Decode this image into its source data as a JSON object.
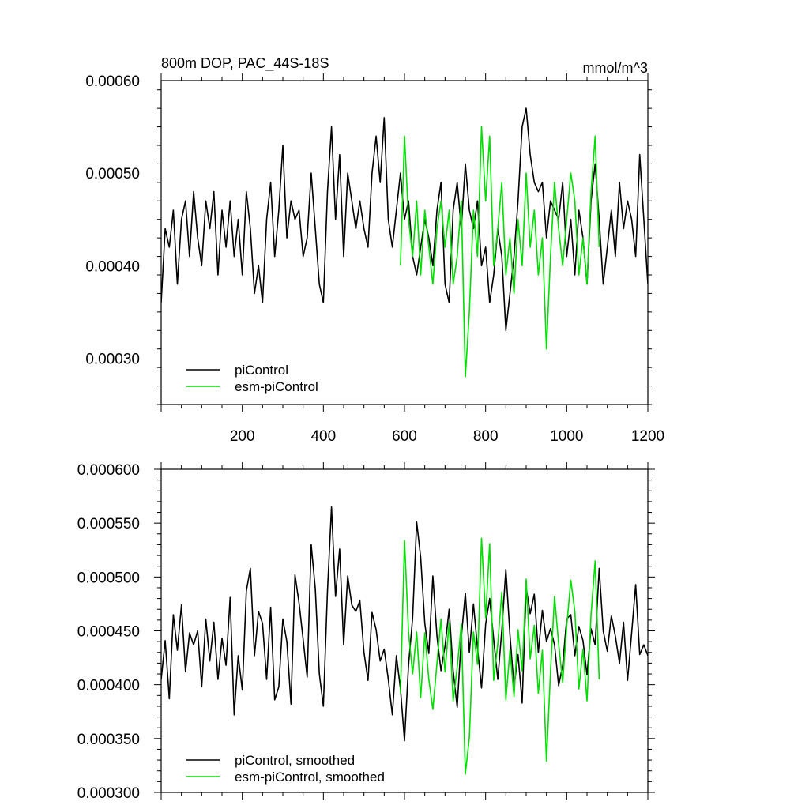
{
  "chart_data": [
    {
      "type": "line",
      "title": "800m DOP, PAC_44S-18S",
      "units": "mmol/m^3",
      "xlim": [
        0,
        1200
      ],
      "ylim": [
        0.00025,
        0.0006
      ],
      "xticks": [
        200,
        400,
        600,
        800,
        1000,
        1200
      ],
      "xtick_labels": [
        "200",
        "400",
        "600",
        "800",
        "1000",
        "1200"
      ],
      "yticks": [
        0.0003,
        0.0004,
        0.0005,
        0.0006
      ],
      "ytick_labels": [
        "0.00030",
        "0.00040",
        "0.00050",
        "0.00060"
      ],
      "legend_position": "bottom-left",
      "series": [
        {
          "name": "piControl",
          "color": "#000000",
          "x": [
            0,
            10,
            20,
            30,
            40,
            50,
            60,
            70,
            80,
            90,
            100,
            110,
            120,
            130,
            140,
            150,
            160,
            170,
            180,
            190,
            200,
            210,
            220,
            230,
            240,
            250,
            260,
            270,
            280,
            290,
            300,
            310,
            320,
            330,
            340,
            350,
            360,
            370,
            380,
            390,
            400,
            410,
            420,
            430,
            440,
            450,
            460,
            470,
            480,
            490,
            500,
            510,
            520,
            530,
            540,
            550,
            560,
            570,
            580,
            590,
            600,
            610,
            620,
            630,
            640,
            650,
            660,
            670,
            680,
            690,
            700,
            710,
            720,
            730,
            740,
            750,
            760,
            770,
            780,
            790,
            800,
            810,
            820,
            830,
            840,
            850,
            860,
            870,
            880,
            890,
            900,
            910,
            920,
            930,
            940,
            950,
            960,
            970,
            980,
            990,
            1000,
            1010,
            1020,
            1030,
            1040,
            1050,
            1060,
            1070,
            1080,
            1090,
            1100,
            1110,
            1120,
            1130,
            1140,
            1150,
            1160,
            1170,
            1180,
            1190,
            1200
          ],
          "values": [
            0.00036,
            0.00044,
            0.00042,
            0.00046,
            0.00038,
            0.00045,
            0.00047,
            0.00041,
            0.00048,
            0.00043,
            0.0004,
            0.00047,
            0.00044,
            0.00048,
            0.00039,
            0.00046,
            0.00042,
            0.00047,
            0.00041,
            0.00045,
            0.00039,
            0.00048,
            0.00044,
            0.00037,
            0.0004,
            0.00036,
            0.00045,
            0.00049,
            0.00041,
            0.00046,
            0.00053,
            0.00043,
            0.00047,
            0.00045,
            0.00046,
            0.00041,
            0.00043,
            0.0005,
            0.00044,
            0.00038,
            0.00036,
            0.00048,
            0.00055,
            0.00045,
            0.00052,
            0.00041,
            0.0005,
            0.00047,
            0.00044,
            0.00047,
            0.00044,
            0.00042,
            0.0005,
            0.00054,
            0.00049,
            0.00056,
            0.00045,
            0.00042,
            0.00046,
            0.0005,
            0.00045,
            0.00047,
            0.00041,
            0.00039,
            0.00042,
            0.00045,
            0.00043,
            0.0004,
            0.00046,
            0.00049,
            0.00038,
            0.00036,
            0.00046,
            0.00049,
            0.00044,
            0.00051,
            0.00046,
            0.00044,
            0.00047,
            0.0004,
            0.00042,
            0.00036,
            0.00039,
            0.00044,
            0.00041,
            0.00033,
            0.00037,
            0.00041,
            0.00047,
            0.00055,
            0.00057,
            0.00052,
            0.00049,
            0.00048,
            0.00049,
            0.00043,
            0.00047,
            0.00046,
            0.00045,
            0.00049,
            0.00041,
            0.00045,
            0.00039,
            0.00046,
            0.00043,
            0.00038,
            0.00047,
            0.00051,
            0.00045,
            0.00038,
            0.00042,
            0.00046,
            0.00041,
            0.00049,
            0.00044,
            0.00047,
            0.00045,
            0.00041,
            0.00052,
            0.00045,
            0.00038
          ]
        },
        {
          "name": "esm-piControl",
          "color": "#00dd00",
          "x": [
            590,
            600,
            610,
            620,
            630,
            640,
            650,
            660,
            670,
            680,
            690,
            700,
            710,
            720,
            730,
            740,
            750,
            760,
            770,
            780,
            790,
            800,
            810,
            820,
            830,
            840,
            850,
            860,
            870,
            880,
            890,
            900,
            910,
            920,
            930,
            940,
            950,
            960,
            970,
            980,
            990,
            1000,
            1010,
            1020,
            1030,
            1040,
            1050,
            1060,
            1070,
            1080
          ],
          "values": [
            0.0004,
            0.00054,
            0.00045,
            0.00041,
            0.00047,
            0.00039,
            0.00046,
            0.00042,
            0.00038,
            0.00044,
            0.00047,
            0.00042,
            0.00046,
            0.00038,
            0.00041,
            0.00047,
            0.00028,
            0.00035,
            0.00046,
            0.00041,
            0.00055,
            0.00047,
            0.00054,
            0.0004,
            0.00044,
            0.00049,
            0.00039,
            0.00043,
            0.00037,
            0.00045,
            0.0004,
            0.0005,
            0.00042,
            0.00046,
            0.00039,
            0.00043,
            0.00031,
            0.00041,
            0.00049,
            0.00044,
            0.0004,
            0.00045,
            0.0005,
            0.00047,
            0.00039,
            0.00043,
            0.00038,
            0.00048,
            0.00054,
            0.00042
          ]
        }
      ]
    },
    {
      "type": "line",
      "title": "",
      "xlim": [
        0,
        1200
      ],
      "ylim": [
        0.0003,
        0.0006
      ],
      "yticks": [
        0.0003,
        0.00035,
        0.0004,
        0.00045,
        0.0005,
        0.00055,
        0.0006
      ],
      "ytick_labels": [
        "0.000300",
        "0.000350",
        "0.000400",
        "0.000450",
        "0.000500",
        "0.000550",
        "0.000600"
      ],
      "legend_position": "bottom-left",
      "series": [
        {
          "name": "piControl, smoothed",
          "color": "#000000",
          "x": [
            0,
            10,
            20,
            30,
            40,
            50,
            60,
            70,
            80,
            90,
            100,
            110,
            120,
            130,
            140,
            150,
            160,
            170,
            180,
            190,
            200,
            210,
            220,
            230,
            240,
            250,
            260,
            270,
            280,
            290,
            300,
            310,
            320,
            330,
            340,
            350,
            360,
            370,
            380,
            390,
            400,
            410,
            420,
            430,
            440,
            450,
            460,
            470,
            480,
            490,
            500,
            510,
            520,
            530,
            540,
            550,
            560,
            570,
            580,
            590,
            600,
            610,
            620,
            630,
            640,
            650,
            660,
            670,
            680,
            690,
            700,
            710,
            720,
            730,
            740,
            750,
            760,
            770,
            780,
            790,
            800,
            810,
            820,
            830,
            840,
            850,
            860,
            870,
            880,
            890,
            900,
            910,
            920,
            930,
            940,
            950,
            960,
            970,
            980,
            990,
            1000,
            1010,
            1020,
            1030,
            1040,
            1050,
            1060,
            1070,
            1080,
            1090,
            1100,
            1110,
            1120,
            1130,
            1140,
            1150,
            1160,
            1170,
            1180,
            1190,
            1200
          ],
          "values": [
            0.000405,
            0.000441,
            0.000387,
            0.000465,
            0.000432,
            0.000474,
            0.000412,
            0.000448,
            0.000437,
            0.00045,
            0.000398,
            0.000461,
            0.000422,
            0.000458,
            0.000405,
            0.000443,
            0.000418,
            0.000481,
            0.000372,
            0.000427,
            0.000395,
            0.000487,
            0.000508,
            0.000427,
            0.000468,
            0.000457,
            0.000405,
            0.000472,
            0.000386,
            0.000398,
            0.000461,
            0.00044,
            0.000382,
            0.000502,
            0.000476,
            0.000442,
            0.000407,
            0.00053,
            0.000489,
            0.00041,
            0.00038,
            0.000487,
            0.000565,
            0.000482,
            0.000526,
            0.000437,
            0.000501,
            0.000474,
            0.000468,
            0.000478,
            0.00043,
            0.000404,
            0.000467,
            0.000451,
            0.000422,
            0.000433,
            0.000405,
            0.000372,
            0.000427,
            0.000396,
            0.000348,
            0.000418,
            0.000462,
            0.000551,
            0.000518,
            0.000457,
            0.000429,
            0.000501,
            0.000445,
            0.000413,
            0.000436,
            0.00047,
            0.000413,
            0.000379,
            0.000444,
            0.000485,
            0.00043,
            0.000475,
            0.000434,
            0.000397,
            0.000456,
            0.00048,
            0.000442,
            0.000405,
            0.000451,
            0.000507,
            0.000446,
            0.000398,
            0.000428,
            0.000383,
            0.00049,
            0.000466,
            0.000484,
            0.00043,
            0.000469,
            0.00044,
            0.000452,
            0.000437,
            0.000399,
            0.000418,
            0.000461,
            0.000465,
            0.000427,
            0.000454,
            0.000441,
            0.000409,
            0.000452,
            0.000437,
            0.000508,
            0.00045,
            0.000431,
            0.000464,
            0.000445,
            0.00042,
            0.000458,
            0.000404,
            0.000448,
            0.000493,
            0.000428,
            0.000437,
            0.000427
          ]
        },
        {
          "name": "esm-piControl, smoothed",
          "color": "#00dd00",
          "x": [
            590,
            600,
            610,
            620,
            630,
            640,
            650,
            660,
            670,
            680,
            690,
            700,
            710,
            720,
            730,
            740,
            750,
            760,
            770,
            780,
            790,
            800,
            810,
            820,
            830,
            840,
            850,
            860,
            870,
            880,
            890,
            900,
            910,
            920,
            930,
            940,
            950,
            960,
            970,
            980,
            990,
            1000,
            1010,
            1020,
            1030,
            1040,
            1050,
            1060,
            1070,
            1080
          ],
          "values": [
            0.000392,
            0.000534,
            0.000449,
            0.00041,
            0.000449,
            0.000388,
            0.000448,
            0.000405,
            0.000377,
            0.00042,
            0.000461,
            0.000412,
            0.000458,
            0.000385,
            0.000416,
            0.000456,
            0.000317,
            0.000351,
            0.000449,
            0.000419,
            0.000536,
            0.000462,
            0.000531,
            0.000404,
            0.000438,
            0.000486,
            0.000386,
            0.000432,
            0.000389,
            0.000451,
            0.000413,
            0.000498,
            0.000424,
            0.000455,
            0.000392,
            0.000432,
            0.000329,
            0.000412,
            0.000482,
            0.000438,
            0.000402,
            0.000454,
            0.000497,
            0.000468,
            0.000396,
            0.000433,
            0.000385,
            0.000465,
            0.000515,
            0.000405
          ]
        }
      ]
    }
  ]
}
